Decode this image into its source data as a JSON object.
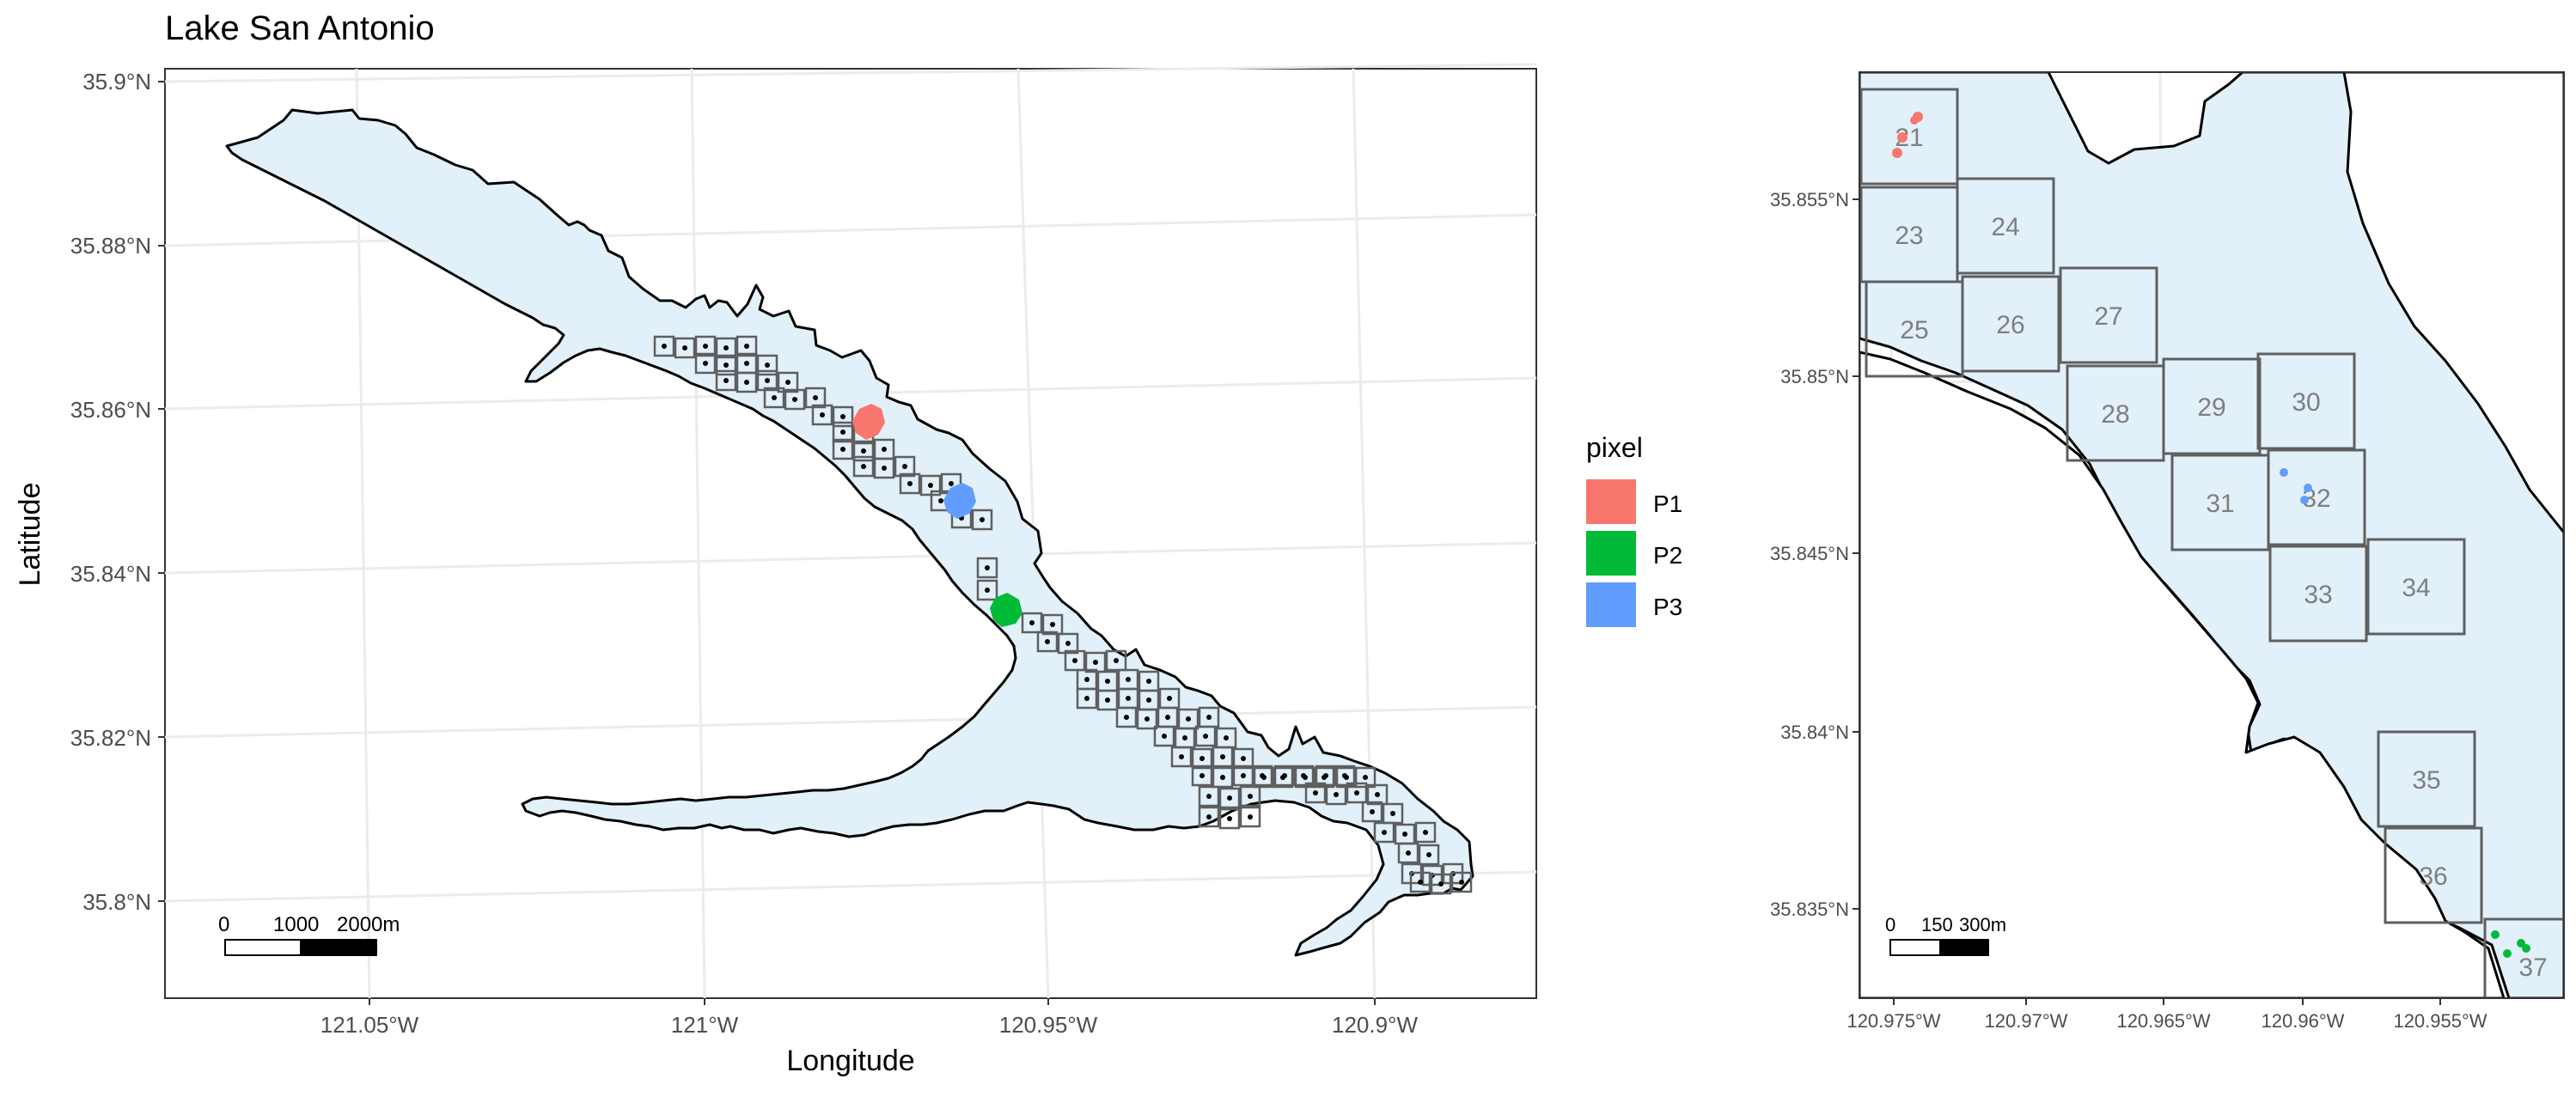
{
  "title": "Lake San Antonio",
  "colors": {
    "water": "#e2f0f9",
    "shore": "#000000",
    "grid": "#ebebeb",
    "cell": "#5f5f5f",
    "label": "#7f7f7f",
    "P1": "#f8766d",
    "P2": "#00ba38",
    "P3": "#619cff"
  },
  "main_map": {
    "xlabel": "Longitude",
    "ylabel": "Latitude",
    "x_ticks": [
      "121.05°W",
      "121°W",
      "120.95°W",
      "120.9°W"
    ],
    "y_ticks": [
      "35.9°N",
      "35.88°N",
      "35.86°N",
      "35.84°N",
      "35.82°N",
      "35.8°N"
    ],
    "scalebar": {
      "labels": [
        "0",
        "1000",
        "2000m"
      ]
    }
  },
  "legend": {
    "title": "pixel",
    "items": [
      {
        "label": "P1",
        "color": "#f8766d"
      },
      {
        "label": "P2",
        "color": "#00ba38"
      },
      {
        "label": "P3",
        "color": "#619cff"
      }
    ]
  },
  "inset_map": {
    "x_ticks": [
      "120.975°W",
      "120.97°W",
      "120.965°W",
      "120.96°W",
      "120.955°W"
    ],
    "y_ticks": [
      "35.855°N",
      "35.85°N",
      "35.845°N",
      "35.84°N",
      "35.835°N"
    ],
    "scalebar": {
      "labels": [
        "0",
        "150",
        "300m"
      ]
    },
    "cells": [
      "21",
      "23",
      "24",
      "25",
      "26",
      "27",
      "28",
      "29",
      "30",
      "31",
      "32",
      "33",
      "34",
      "35",
      "36",
      "37"
    ]
  }
}
